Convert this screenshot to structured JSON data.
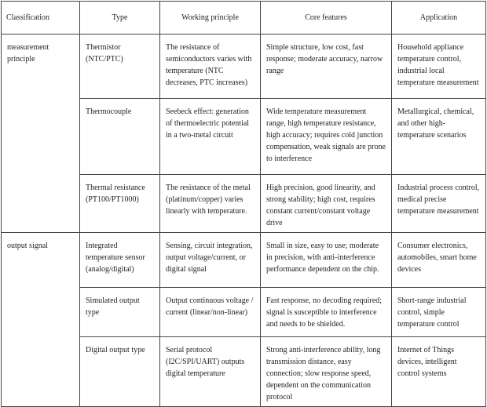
{
  "table": {
    "columns": [
      "Classification",
      "Type",
      "Working principle",
      "Core features",
      "Application"
    ],
    "groups": [
      {
        "classification": "measurement principle",
        "rows": [
          [
            "Thermistor (NTC/PTC)",
            "The resistance of semiconductors varies with temperature (NTC decreases, PTC increases)",
            "Simple structure, low cost, fast response; moderate accuracy, narrow range",
            "Household appliance temperature control, industrial local temperature measurement"
          ],
          [
            "Thermocouple",
            "Seebeck effect: generation of thermoelectric potential in a two-metal circuit",
            "Wide temperature measurement range, high temperature resistance, high accuracy; requires cold junction compensation, weak signals are prone to interference",
            "Metallurgical, chemical, and other high-temperature scenarios"
          ],
          [
            "Thermal resistance (PT100/PT1000)",
            "The resistance of the metal (platinum/copper) varies linearly with temperature.",
            "High precision, good linearity, and strong stability; high cost, requires constant current/constant voltage drive",
            "Industrial process control, medical precise temperature measurement"
          ]
        ]
      },
      {
        "classification": "output signal",
        "rows": [
          [
            "Integrated temperature sensor (analog/digital)",
            "Sensing, circuit integration, output voltage/current, or digital signal",
            "Small in size, easy to use; moderate in precision, with anti-interference performance dependent on the chip.",
            "Consumer electronics, automobiles, smart home devices"
          ],
          [
            "Simulated output type",
            "Output continuous voltage / current (linear/non-linear)",
            "Fast response, no decoding required; signal is susceptible to interference and needs to be shielded.",
            "Short-range industrial control, simple temperature control"
          ],
          [
            "Digital output type",
            "Serial protocol (I2C/SPI/UART) outputs digital temperature",
            "Strong anti-interference ability, long transmission distance, easy connection; slow response speed, dependent on the communication protocol",
            "Internet of Things devices, intelligent control systems"
          ]
        ]
      }
    ]
  }
}
